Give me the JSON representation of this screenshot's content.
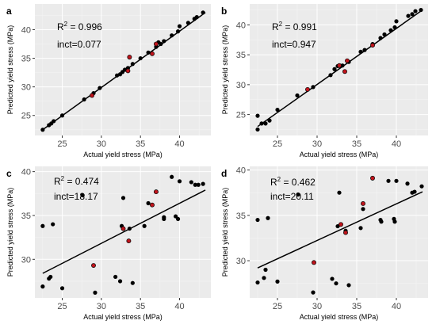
{
  "chart_data": [
    {
      "panel": "a",
      "type": "scatter",
      "xlabel": "Actual yield stress (MPa)",
      "ylabel": "Predicted yield stress (MPa)",
      "xlim": [
        21.5,
        44
      ],
      "ylim": [
        21.5,
        44.5
      ],
      "xticks": [
        25,
        30,
        35,
        40
      ],
      "yticks": [
        25,
        30,
        35,
        40
      ],
      "grid": true,
      "r2_label": "R",
      "r2_sup": "2",
      "r2_value": " = 0.996",
      "incpt": "inct=0.077",
      "fit": [
        [
          22.5,
          22.5
        ],
        [
          43.3,
          43.0
        ]
      ],
      "points_black": [
        [
          22.5,
          22.5
        ],
        [
          23.3,
          23.3
        ],
        [
          23.6,
          23.6
        ],
        [
          23.9,
          24.0
        ],
        [
          25.0,
          25.0
        ],
        [
          27.8,
          27.8
        ],
        [
          29.0,
          28.9
        ],
        [
          29.8,
          29.8
        ],
        [
          32.0,
          32.0
        ],
        [
          32.4,
          32.2
        ],
        [
          32.7,
          32.6
        ],
        [
          33.0,
          33.0
        ],
        [
          33.4,
          33.3
        ],
        [
          34.0,
          34.0
        ],
        [
          35.0,
          35.0
        ],
        [
          36.0,
          36.0
        ],
        [
          37.0,
          37.0
        ],
        [
          37.3,
          37.8
        ],
        [
          37.6,
          37.5
        ],
        [
          38.0,
          38.0
        ],
        [
          39.0,
          39.0
        ],
        [
          39.8,
          39.7
        ],
        [
          40.0,
          40.6
        ],
        [
          41.1,
          41.2
        ],
        [
          41.9,
          41.9
        ],
        [
          42.2,
          42.2
        ],
        [
          43.0,
          43.0
        ]
      ],
      "points_red": [
        [
          28.8,
          28.5
        ],
        [
          33.4,
          32.8
        ],
        [
          33.6,
          35.2
        ],
        [
          36.5,
          35.8
        ],
        [
          37.0,
          37.5
        ]
      ]
    },
    {
      "panel": "b",
      "type": "scatter",
      "xlabel": "Actual yield stress (MPa)",
      "ylabel": "Predicted yield stress (MPa)",
      "xlim": [
        21.5,
        44
      ],
      "ylim": [
        21.5,
        43.5
      ],
      "xticks": [
        25,
        30,
        35,
        40
      ],
      "yticks": [
        25,
        30,
        35,
        40
      ],
      "grid": true,
      "r2_label": "R",
      "r2_sup": "2",
      "r2_value": " = 0.991",
      "incpt": "inct=0.947",
      "fit": [
        [
          22.5,
          23.0
        ],
        [
          43.3,
          42.5
        ]
      ],
      "points_black": [
        [
          22.5,
          22.5
        ],
        [
          22.5,
          24.8
        ],
        [
          23.0,
          23.5
        ],
        [
          23.5,
          23.5
        ],
        [
          24.0,
          24.0
        ],
        [
          25.0,
          25.8
        ],
        [
          27.5,
          28.2
        ],
        [
          29.5,
          29.6
        ],
        [
          31.7,
          31.6
        ],
        [
          32.2,
          32.6
        ],
        [
          32.6,
          33.1
        ],
        [
          33.2,
          33.2
        ],
        [
          34.0,
          33.8
        ],
        [
          35.5,
          35.5
        ],
        [
          36.0,
          35.8
        ],
        [
          37.0,
          36.8
        ],
        [
          38.0,
          37.8
        ],
        [
          38.5,
          38.4
        ],
        [
          39.3,
          39.1
        ],
        [
          39.8,
          39.6
        ],
        [
          40.0,
          40.6
        ],
        [
          41.5,
          41.5
        ],
        [
          42.0,
          41.8
        ],
        [
          42.4,
          42.3
        ],
        [
          43.1,
          42.5
        ]
      ],
      "points_red": [
        [
          28.8,
          29.2
        ],
        [
          32.8,
          33.2
        ],
        [
          33.5,
          32.2
        ],
        [
          33.8,
          34.0
        ],
        [
          37.0,
          36.6
        ]
      ]
    },
    {
      "panel": "c",
      "type": "scatter",
      "xlabel": "Actual yield stress (MPa)",
      "ylabel": "Predicted yield stress (MPa)",
      "xlim": [
        21.5,
        44
      ],
      "ylim": [
        25.6,
        40.6
      ],
      "xticks": [
        25,
        30,
        35,
        40
      ],
      "yticks": [
        30,
        35,
        40
      ],
      "grid": true,
      "r2_label": "R",
      "r2_sup": "2",
      "r2_value": " = 0.474",
      "incpt": "inct=18.17",
      "fit": [
        [
          22.5,
          28.4
        ],
        [
          43.3,
          37.9
        ]
      ],
      "points_black": [
        [
          22.5,
          33.8
        ],
        [
          22.5,
          26.9
        ],
        [
          23.3,
          27.8
        ],
        [
          23.5,
          28.0
        ],
        [
          23.8,
          34.0
        ],
        [
          25.0,
          26.7
        ],
        [
          27.6,
          37.3
        ],
        [
          29.2,
          26.2
        ],
        [
          31.8,
          28.0
        ],
        [
          32.4,
          27.5
        ],
        [
          32.6,
          33.8
        ],
        [
          32.8,
          37.0
        ],
        [
          33.6,
          33.5
        ],
        [
          34.0,
          27.3
        ],
        [
          35.5,
          33.8
        ],
        [
          36.0,
          36.4
        ],
        [
          38.0,
          34.8
        ],
        [
          38.0,
          34.6
        ],
        [
          39.0,
          39.4
        ],
        [
          39.5,
          34.9
        ],
        [
          39.8,
          34.6
        ],
        [
          40.0,
          38.9
        ],
        [
          41.5,
          38.8
        ],
        [
          42.0,
          38.5
        ],
        [
          42.4,
          38.5
        ],
        [
          43.0,
          38.6
        ]
      ],
      "points_red": [
        [
          29.0,
          29.3
        ],
        [
          32.8,
          33.5
        ],
        [
          33.5,
          32.1
        ],
        [
          36.5,
          36.2
        ],
        [
          37.0,
          37.7
        ]
      ]
    },
    {
      "panel": "d",
      "type": "scatter",
      "xlabel": "Actual yield stress (MPa)",
      "ylabel": "Predicted yield stress (MPa)",
      "xlim": [
        21.5,
        44
      ],
      "ylim": [
        25.9,
        40.4
      ],
      "xticks": [
        25,
        30,
        35,
        40
      ],
      "yticks": [
        30,
        35,
        40
      ],
      "grid": true,
      "r2_label": "R",
      "r2_sup": "2",
      "r2_value": " = 0.462",
      "incpt": "inct=20.11",
      "fit": [
        [
          22.5,
          29.2
        ],
        [
          43.3,
          37.6
        ]
      ],
      "points_black": [
        [
          22.5,
          34.5
        ],
        [
          22.5,
          27.6
        ],
        [
          23.3,
          28.1
        ],
        [
          23.5,
          29.0
        ],
        [
          23.8,
          34.7
        ],
        [
          25.0,
          27.7
        ],
        [
          27.6,
          37.3
        ],
        [
          29.5,
          26.5
        ],
        [
          31.9,
          28.0
        ],
        [
          32.4,
          27.5
        ],
        [
          32.6,
          33.8
        ],
        [
          32.8,
          37.5
        ],
        [
          33.6,
          33.3
        ],
        [
          34.0,
          27.3
        ],
        [
          35.5,
          33.6
        ],
        [
          35.8,
          35.7
        ],
        [
          38.0,
          34.5
        ],
        [
          38.1,
          34.3
        ],
        [
          39.0,
          38.8
        ],
        [
          39.7,
          34.6
        ],
        [
          39.8,
          34.3
        ],
        [
          40.0,
          38.8
        ],
        [
          41.4,
          38.5
        ],
        [
          42.0,
          37.5
        ],
        [
          42.3,
          37.6
        ],
        [
          43.2,
          38.2
        ]
      ],
      "points_red": [
        [
          29.6,
          29.8
        ],
        [
          33.0,
          34.0
        ],
        [
          33.6,
          33.1
        ],
        [
          35.8,
          36.3
        ],
        [
          37.0,
          39.1
        ]
      ]
    }
  ]
}
